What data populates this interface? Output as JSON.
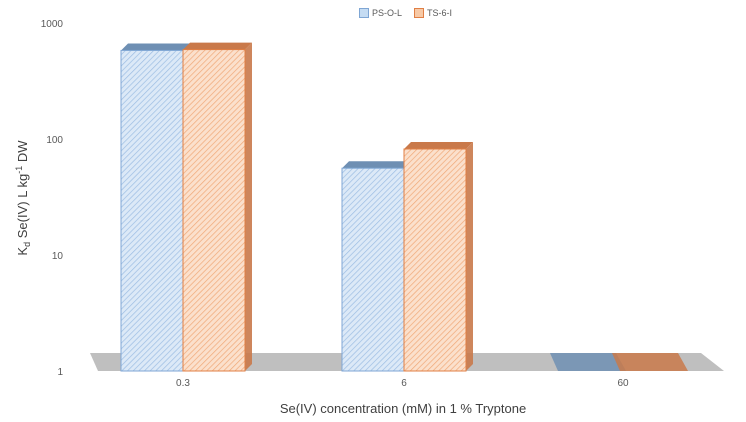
{
  "colors": {
    "series1_face": "#c5dcf3",
    "series1_edge": "#7fa6d4",
    "series1_top": "#6e8fb3",
    "series2_face": "#f7c9a6",
    "series2_edge": "#e07f45",
    "series2_top": "#c9794a",
    "floor": "#bfbfbf"
  },
  "chart_data": {
    "type": "bar",
    "categories": [
      "0.3",
      "6",
      "60"
    ],
    "series": [
      {
        "name": "PS-O-L",
        "values": [
          580,
          56,
          1
        ]
      },
      {
        "name": "TS-6-I",
        "values": [
          590,
          82,
          1
        ]
      }
    ],
    "yscale": "log",
    "ylim": [
      1,
      1000
    ],
    "yticks": [
      "1",
      "10",
      "100",
      "1000"
    ],
    "ylabel_main": "K",
    "ylabel_sub": "d",
    "ylabel_mid": " Se(IV) L kg",
    "ylabel_sup": "-1",
    "ylabel_end": " DW",
    "xlabel": "Se(IV) concentration (mM) in 1 % Tryptone",
    "legend_position": "top",
    "grid": false
  }
}
